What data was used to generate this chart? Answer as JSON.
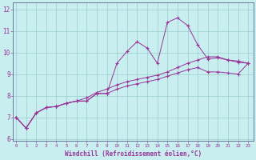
{
  "xlabel": "Windchill (Refroidissement éolien,°C)",
  "bg_color": "#c8eef0",
  "line_color": "#993399",
  "grid_color": "#99cccc",
  "x_data": [
    0,
    1,
    2,
    3,
    4,
    5,
    6,
    7,
    8,
    9,
    10,
    11,
    12,
    13,
    14,
    15,
    16,
    17,
    18,
    19,
    20,
    21,
    22,
    23
  ],
  "line1_y": [
    7.0,
    6.5,
    7.2,
    7.45,
    7.5,
    7.65,
    7.75,
    7.75,
    8.1,
    8.1,
    9.5,
    10.05,
    10.5,
    10.2,
    9.5,
    11.4,
    11.6,
    11.25,
    10.35,
    9.7,
    9.75,
    9.65,
    9.55,
    9.5
  ],
  "line2_y": [
    7.0,
    6.5,
    7.2,
    7.45,
    7.5,
    7.65,
    7.75,
    7.9,
    8.15,
    8.3,
    8.5,
    8.65,
    8.75,
    8.85,
    8.95,
    9.1,
    9.3,
    9.5,
    9.65,
    9.8,
    9.8,
    9.65,
    9.6,
    9.5
  ],
  "line3_y": [
    7.0,
    6.5,
    7.2,
    7.45,
    7.5,
    7.65,
    7.75,
    7.75,
    8.1,
    8.1,
    8.3,
    8.45,
    8.55,
    8.65,
    8.75,
    8.9,
    9.05,
    9.2,
    9.3,
    9.1,
    9.1,
    9.05,
    9.0,
    9.5
  ],
  "yticks": [
    6,
    7,
    8,
    9,
    10,
    11,
    12
  ],
  "ylim": [
    5.9,
    12.3
  ],
  "xlim": [
    -0.3,
    23.5
  ],
  "marker": "+"
}
